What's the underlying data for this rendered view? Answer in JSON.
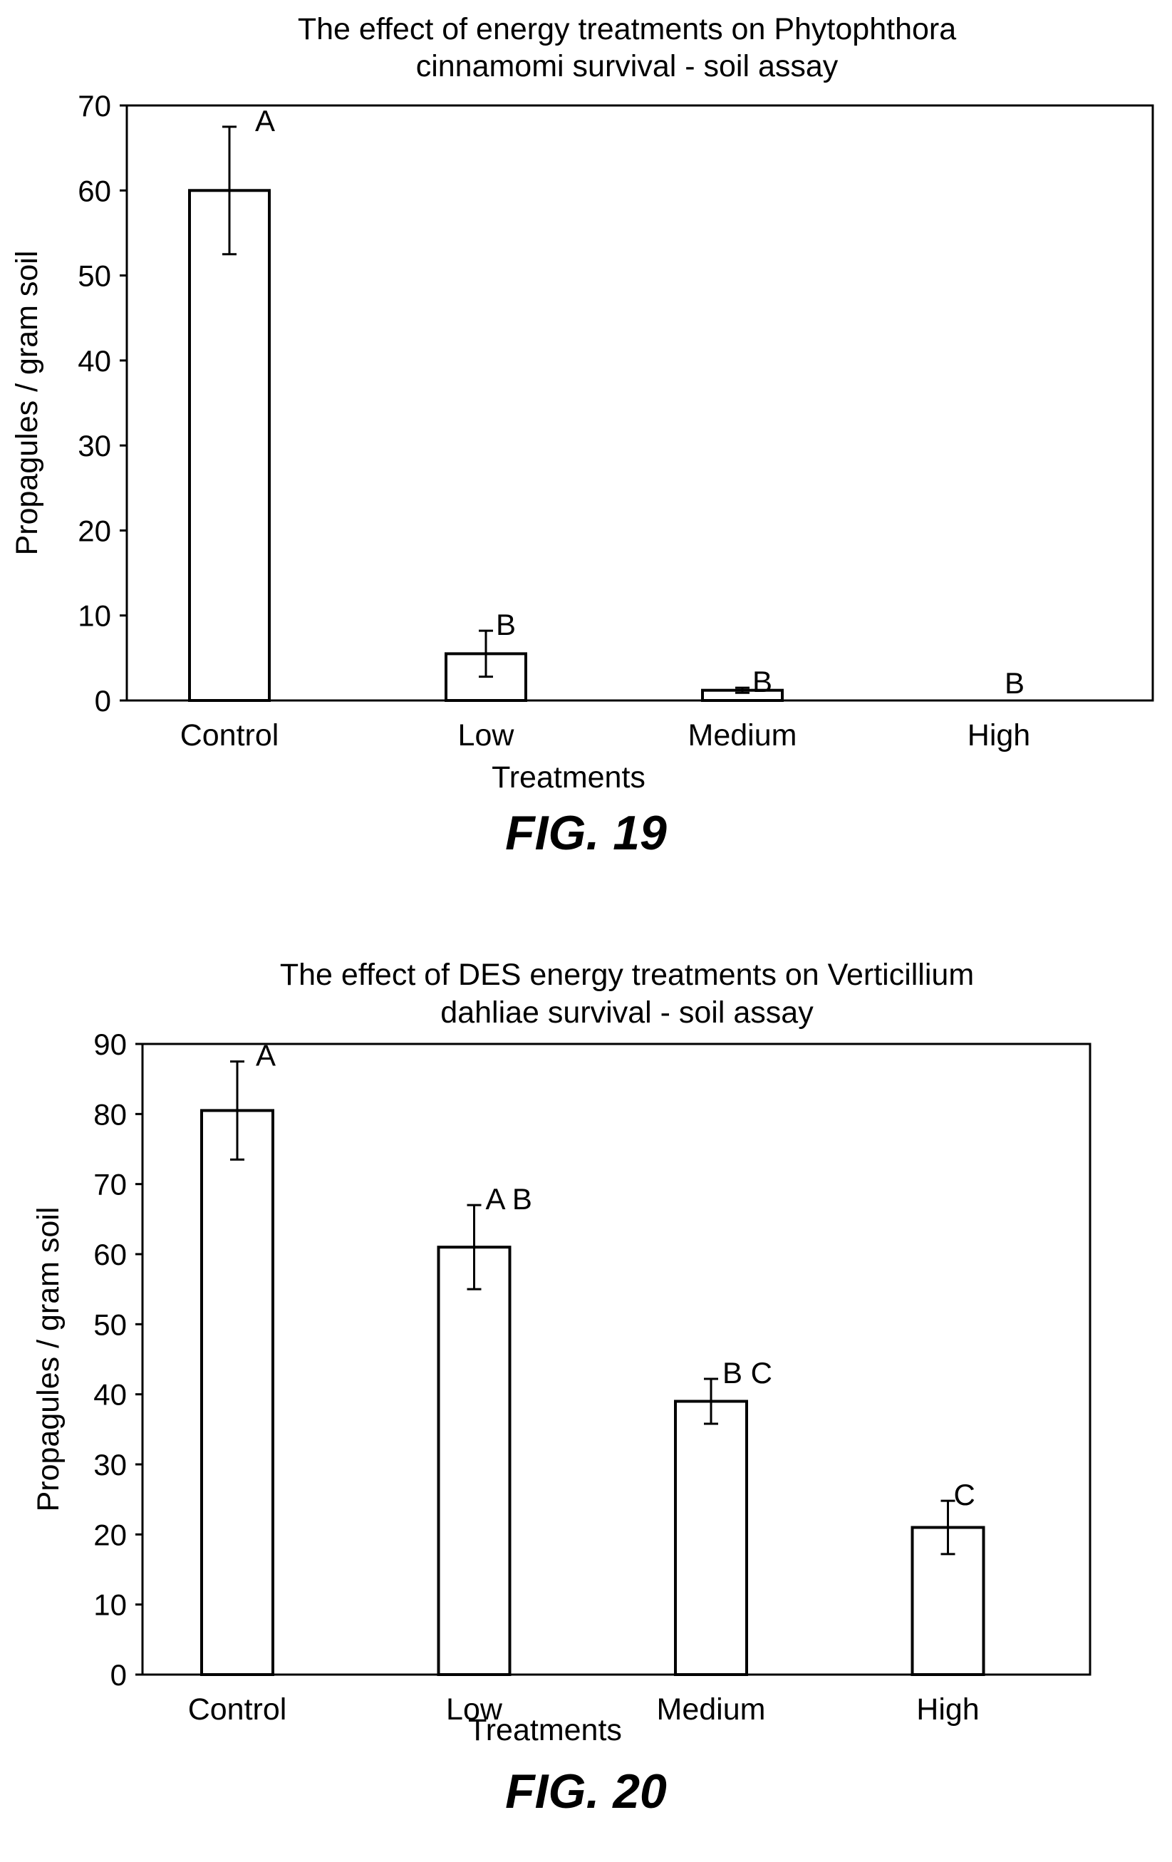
{
  "figures": [
    {
      "label": "FIG. 19",
      "chart_data": {
        "type": "bar",
        "title_lines": [
          "The effect of energy treatments on Phytophthora",
          "cinnamomi survival - soil assay"
        ],
        "xlabel": "Treatments",
        "ylabel": "Propagules / gram soil",
        "categories": [
          "Control",
          "Low",
          "Medium",
          "High"
        ],
        "values": [
          60,
          5.5,
          1.2,
          0
        ],
        "errors": [
          7.5,
          2.7,
          0.3,
          0
        ],
        "significance_letters": [
          "A",
          "B",
          "B",
          "B"
        ],
        "ylim": [
          0,
          70
        ],
        "yticks": [
          0,
          10,
          20,
          30,
          40,
          50,
          60,
          70
        ],
        "grid": false
      }
    },
    {
      "label": "FIG. 20",
      "chart_data": {
        "type": "bar",
        "title_lines": [
          "The effect of DES energy treatments on Verticillium",
          "dahliae survival - soil assay"
        ],
        "xlabel": "Treatments",
        "ylabel": "Propagules / gram soil",
        "categories": [
          "Control",
          "Low",
          "Medium",
          "High"
        ],
        "values": [
          80.5,
          61,
          39,
          21
        ],
        "errors": [
          7,
          6,
          3.2,
          3.8
        ],
        "significance_letters": [
          "A",
          "A B",
          "B C",
          "C"
        ],
        "ylim": [
          0,
          90
        ],
        "yticks": [
          0,
          10,
          20,
          30,
          40,
          50,
          60,
          70,
          80,
          90
        ],
        "grid": false
      }
    }
  ]
}
